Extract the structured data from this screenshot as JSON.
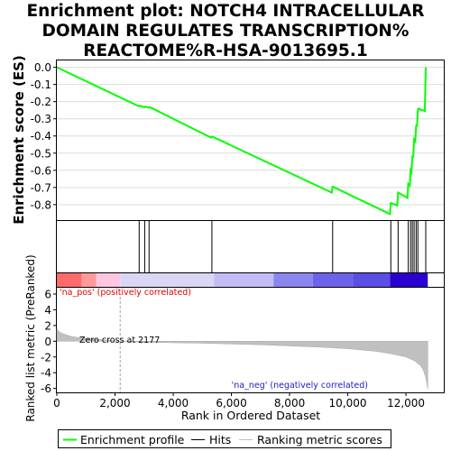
{
  "title_lines": [
    "Enrichment plot: NOTCH4 INTRACELLULAR",
    "DOMAIN REGULATES TRANSCRIPTION%",
    "REACTOME%R-HSA-9013695.1"
  ],
  "legend": {
    "items": [
      {
        "label": "Enrichment profile",
        "color": "#00ff00"
      },
      {
        "label": "Hits",
        "color": "#000000"
      },
      {
        "label": "Ranking metric scores",
        "color": "#c0c0c0"
      }
    ]
  },
  "chart_data": [
    {
      "type": "line",
      "panel": "enrichment-score",
      "ylabel": "Enrichment score (ES)",
      "ylim": [
        -0.89,
        0.04
      ],
      "xlim": [
        0,
        13300
      ],
      "yticks": [
        0.0,
        -0.1,
        -0.2,
        -0.3,
        -0.4,
        -0.5,
        -0.6,
        -0.7,
        -0.8
      ],
      "ytick_labels": [
        "0.0",
        "-0.1",
        "-0.2",
        "-0.3",
        "-0.4",
        "-0.5",
        "-0.6",
        "-0.7",
        "-0.8"
      ],
      "grid": true,
      "series": [
        {
          "color": "#00ff00",
          "x": [
            0,
            2830,
            2860,
            3020,
            3050,
            3170,
            3200,
            5300,
            5330,
            5400,
            9450,
            9480,
            11450,
            11480,
            11700,
            11730,
            12050,
            12080,
            12130,
            12160,
            12190,
            12220,
            12250,
            12280,
            12320,
            12350,
            12380,
            12410,
            12450,
            12480,
            12650,
            12680
          ],
          "y": [
            0.0,
            -0.228,
            -0.225,
            -0.233,
            -0.229,
            -0.235,
            -0.232,
            -0.41,
            -0.404,
            -0.408,
            -0.73,
            -0.695,
            -0.855,
            -0.79,
            -0.805,
            -0.73,
            -0.76,
            -0.68,
            -0.69,
            -0.6,
            -0.61,
            -0.515,
            -0.525,
            -0.42,
            -0.43,
            -0.335,
            -0.345,
            -0.245,
            -0.24,
            -0.245,
            -0.255,
            0.0
          ]
        }
      ]
    },
    {
      "type": "scatter",
      "panel": "hits",
      "x": [
        2830,
        3020,
        3170,
        5330,
        9480,
        11480,
        11730,
        12080,
        12160,
        12220,
        12280,
        12350,
        12410,
        12680
      ]
    },
    {
      "type": "heatmap",
      "panel": "rank-colorbar",
      "labels": [
        "'na_pos' (positively correlated)",
        "'na_neg' (negatively correlated)"
      ],
      "bands": [
        {
          "x0": 0,
          "x1": 850,
          "color": "#ff6b6b"
        },
        {
          "x0": 850,
          "x1": 1350,
          "color": "#ff9a9a"
        },
        {
          "x0": 1350,
          "x1": 2177,
          "color": "#ffc6e0"
        },
        {
          "x0": 2177,
          "x1": 5400,
          "color": "#dad6f6"
        },
        {
          "x0": 5400,
          "x1": 7450,
          "color": "#c3bcf4"
        },
        {
          "x0": 7450,
          "x1": 8800,
          "color": "#8a86f0"
        },
        {
          "x0": 8800,
          "x1": 10200,
          "color": "#6d62ea"
        },
        {
          "x0": 10200,
          "x1": 11450,
          "color": "#5a4ee4"
        },
        {
          "x0": 11450,
          "x1": 12750,
          "color": "#2a00d0"
        }
      ]
    },
    {
      "type": "area",
      "panel": "ranked-metric",
      "xlabel": "Rank in Ordered Dataset",
      "ylabel": "Ranked list metric (PreRanked)",
      "ylim": [
        -6.5,
        6.8
      ],
      "yticks": [
        6,
        4,
        2,
        0,
        -2,
        -4,
        -6
      ],
      "xticks": [
        0,
        2000,
        4000,
        6000,
        8000,
        10000,
        12000
      ],
      "xtick_labels": [
        "0",
        "2,000",
        "4,000",
        "6,000",
        "8,000",
        "10,000",
        "12,000"
      ],
      "zero_cross": 2177,
      "annotation": "Zero cross at 2177",
      "series": [
        {
          "color": "#c0c0c0",
          "x": [
            0,
            50,
            150,
            300,
            500,
            800,
            1200,
            1600,
            2000,
            2177,
            3000,
            5000,
            7000,
            9000,
            10000,
            11000,
            11500,
            12000,
            12300,
            12500,
            12600,
            12680,
            12750
          ],
          "y": [
            1.6,
            1.3,
            1.05,
            0.85,
            0.6,
            0.45,
            0.3,
            0.17,
            0.05,
            0.0,
            -0.12,
            -0.25,
            -0.45,
            -0.75,
            -0.95,
            -1.3,
            -1.6,
            -2.0,
            -2.5,
            -3.1,
            -3.7,
            -4.6,
            -6.1
          ]
        }
      ]
    }
  ]
}
